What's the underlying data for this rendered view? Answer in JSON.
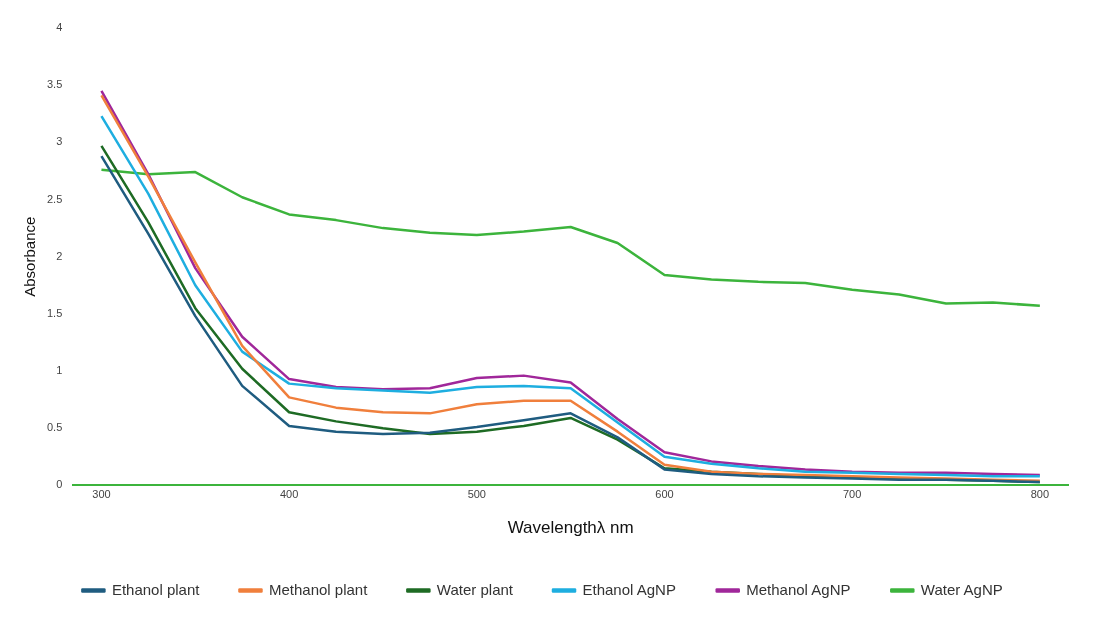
{
  "chart_data": {
    "type": "line",
    "xlabel": "Wavelengthλ nm",
    "ylabel": "Absorbance",
    "x": [
      300,
      325,
      350,
      375,
      400,
      425,
      450,
      475,
      500,
      525,
      550,
      575,
      600,
      625,
      650,
      675,
      700,
      725,
      750,
      775,
      800
    ],
    "xlim": [
      285,
      815
    ],
    "xticks": [
      300,
      400,
      500,
      600,
      700,
      800
    ],
    "ylim": [
      0,
      4
    ],
    "yticks": [
      0,
      0.5,
      1,
      1.5,
      2,
      2.5,
      3,
      3.5,
      4
    ],
    "grid": false,
    "legend": "bottom",
    "marker": "none",
    "line_style": "solid",
    "series": [
      {
        "name": "Ethanol plant",
        "color": "#1f5c80",
        "values": [
          2.88,
          2.2,
          1.48,
          0.87,
          0.52,
          0.47,
          0.45,
          0.46,
          0.51,
          0.57,
          0.63,
          0.42,
          0.14,
          0.1,
          0.08,
          0.07,
          0.06,
          0.05,
          0.05,
          0.04,
          0.03
        ]
      },
      {
        "name": "Methanol plant",
        "color": "#f07f3c",
        "values": [
          3.41,
          2.7,
          1.95,
          1.22,
          0.77,
          0.68,
          0.64,
          0.63,
          0.71,
          0.74,
          0.74,
          0.47,
          0.18,
          0.12,
          0.1,
          0.09,
          0.08,
          0.07,
          0.06,
          0.05,
          0.04
        ]
      },
      {
        "name": "Water plant",
        "color": "#1e6b24",
        "values": [
          2.97,
          2.3,
          1.55,
          1.02,
          0.64,
          0.56,
          0.5,
          0.45,
          0.47,
          0.52,
          0.59,
          0.4,
          0.15,
          0.12,
          0.1,
          0.08,
          0.07,
          0.06,
          0.05,
          0.04,
          0.03
        ]
      },
      {
        "name": "Ethanol AgNP",
        "color": "#1eaee0",
        "values": [
          3.23,
          2.55,
          1.75,
          1.17,
          0.89,
          0.85,
          0.83,
          0.81,
          0.86,
          0.87,
          0.85,
          0.55,
          0.25,
          0.19,
          0.15,
          0.12,
          0.11,
          0.1,
          0.09,
          0.08,
          0.08
        ]
      },
      {
        "name": "Methanol AgNP",
        "color": "#a0279a",
        "values": [
          3.45,
          2.72,
          1.9,
          1.3,
          0.93,
          0.86,
          0.84,
          0.85,
          0.94,
          0.96,
          0.9,
          0.58,
          0.29,
          0.21,
          0.17,
          0.14,
          0.12,
          0.11,
          0.11,
          0.1,
          0.09
        ]
      },
      {
        "name": "Water AgNP",
        "color": "#3cb43c",
        "values": [
          2.76,
          2.72,
          2.74,
          2.52,
          2.37,
          2.32,
          2.25,
          2.21,
          2.19,
          2.22,
          2.26,
          2.12,
          1.84,
          1.8,
          1.78,
          1.77,
          1.71,
          1.67,
          1.59,
          1.6,
          1.57
        ]
      }
    ]
  }
}
